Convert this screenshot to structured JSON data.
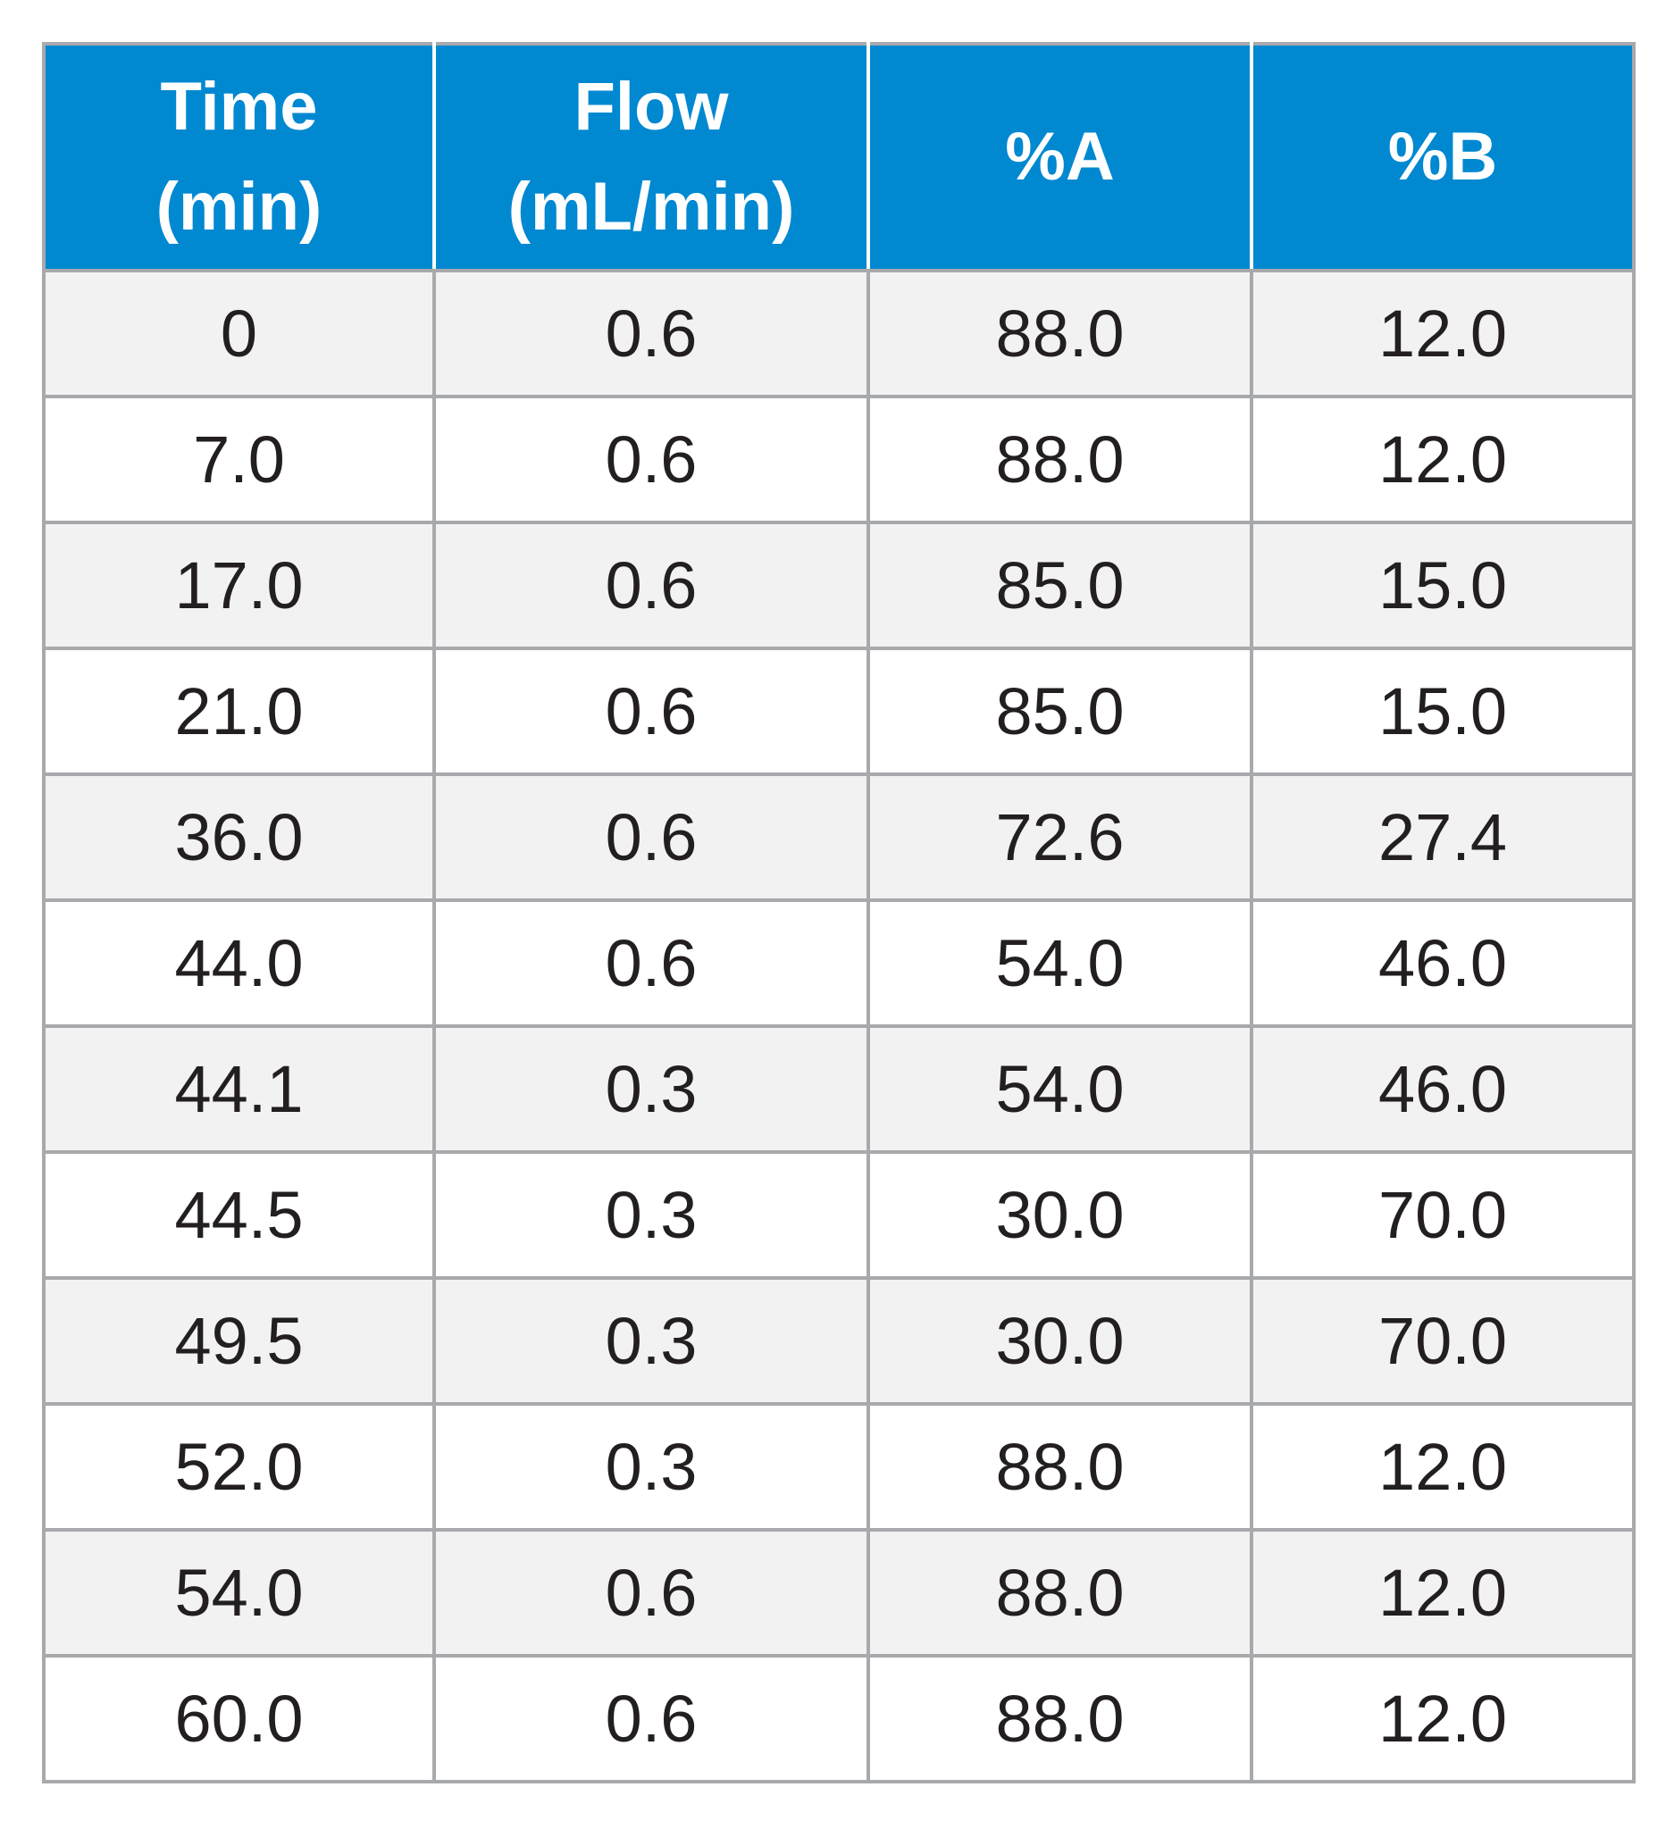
{
  "table": {
    "columns": [
      {
        "line1": "Time",
        "line2": "(min)"
      },
      {
        "line1": "Flow",
        "line2": "(mL/min)"
      },
      {
        "line1": "%A",
        "line2": ""
      },
      {
        "line1": "%B",
        "line2": ""
      }
    ],
    "rows": [
      [
        "0",
        "0.6",
        "88.0",
        "12.0"
      ],
      [
        "7.0",
        "0.6",
        "88.0",
        "12.0"
      ],
      [
        "17.0",
        "0.6",
        "85.0",
        "15.0"
      ],
      [
        "21.0",
        "0.6",
        "85.0",
        "15.0"
      ],
      [
        "36.0",
        "0.6",
        "72.6",
        "27.4"
      ],
      [
        "44.0",
        "0.6",
        "54.0",
        "46.0"
      ],
      [
        "44.1",
        "0.3",
        "54.0",
        "46.0"
      ],
      [
        "44.5",
        "0.3",
        "30.0",
        "70.0"
      ],
      [
        "49.5",
        "0.3",
        "30.0",
        "70.0"
      ],
      [
        "52.0",
        "0.3",
        "88.0",
        "12.0"
      ],
      [
        "54.0",
        "0.6",
        "88.0",
        "12.0"
      ],
      [
        "60.0",
        "0.6",
        "88.0",
        "12.0"
      ]
    ]
  },
  "colors": {
    "header_bg": "#0088d1",
    "header_text": "#ffffff",
    "row_shade": "#f2f2f3",
    "grid_line": "#a7a9ac"
  }
}
